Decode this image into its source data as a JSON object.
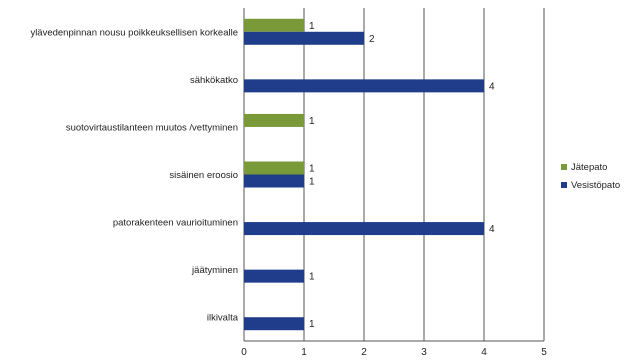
{
  "chart_data": {
    "type": "bar",
    "orientation": "horizontal",
    "title": "",
    "xlabel": "",
    "ylabel": "",
    "categories": [
      "ylävedenpinnan nousu poikkeuksellisen korkealle",
      "sähkökatko",
      "suotovirtaustilanteen muutos /vettyminen",
      "sisäinen eroosio",
      "patorakenteen vaurioituminen",
      "jäätyminen",
      "ilkivalta"
    ],
    "series": [
      {
        "name": "Jätepato",
        "color": "#7a9a3a",
        "values": [
          1,
          null,
          1,
          1,
          null,
          null,
          null
        ]
      },
      {
        "name": "Vesistöpato",
        "color": "#1f3d8a",
        "values": [
          2,
          4,
          null,
          1,
          4,
          1,
          1
        ]
      }
    ],
    "xlim": [
      0,
      5
    ],
    "xticks": [
      "0",
      "1",
      "2",
      "3",
      "4",
      "5"
    ],
    "grid": "vertical",
    "legend_position": "right"
  }
}
